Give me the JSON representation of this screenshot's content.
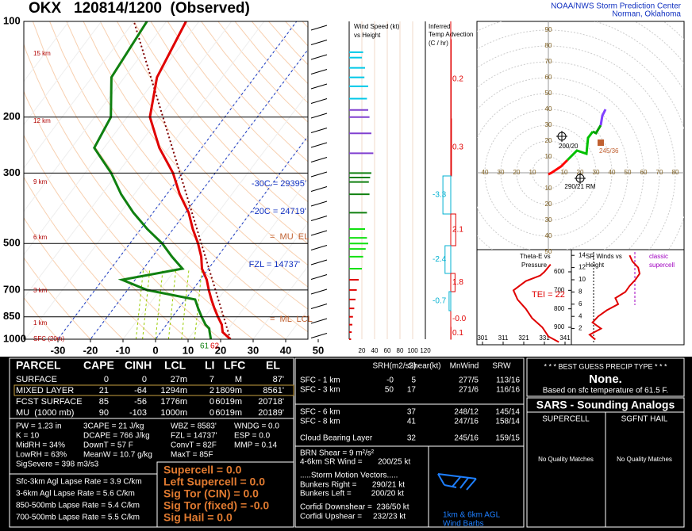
{
  "header": {
    "title": "OKX   120814/1200  (Observed)",
    "org": "NOAA/NWS Storm Prediction Center",
    "place": "Norman, Oklahoma"
  },
  "skewt": {
    "type": "line",
    "pressure_ticks": [
      100,
      200,
      300,
      500,
      700,
      850,
      1000
    ],
    "temp_ticks": [
      -30,
      -20,
      -10,
      0,
      10,
      20,
      30,
      40,
      50
    ],
    "height_labels": [
      "15 km",
      "12 km",
      "9 km",
      "6 km",
      "3 km",
      "1 km",
      "SFC (20m)"
    ],
    "annotations": [
      "-30C = 29395'",
      "-20C = 24719'",
      "FZL = 14737'",
      "=  MU  EL",
      "=  ML  LCL"
    ],
    "surface_labels": [
      "61",
      "62"
    ],
    "pressure": [
      1000,
      950,
      925,
      900,
      850,
      800,
      750,
      700,
      650,
      600,
      550,
      500,
      450,
      400,
      350,
      300,
      250,
      200,
      150,
      100
    ],
    "temperature": [
      23,
      19,
      18,
      17,
      14,
      11,
      8,
      5,
      2,
      -2,
      -5,
      -9,
      -14,
      -19,
      -26,
      -33,
      -43,
      -53,
      -60,
      -64
    ],
    "dewpoint": [
      17,
      15,
      14,
      12,
      9,
      6,
      3,
      -14,
      -24,
      -8,
      -14,
      -20,
      -28,
      -36,
      -44,
      -52,
      -63,
      -65,
      -74,
      -76
    ]
  },
  "wind_panel": {
    "title": "Wind Speed (kt)",
    "subtitle": "vs Height",
    "ticks": [
      20,
      40,
      60,
      80,
      100,
      120
    ],
    "pressure": [
      125,
      130,
      140,
      150,
      160,
      175,
      190,
      200,
      225,
      260,
      300,
      310,
      320,
      350,
      400,
      450,
      480,
      500,
      520,
      550,
      600,
      650,
      700,
      750,
      800,
      850,
      900,
      950,
      1000
    ],
    "speed": [
      22,
      20,
      25,
      24,
      30,
      28,
      30,
      32,
      35,
      38,
      35,
      33,
      31,
      32,
      28,
      25,
      28,
      30,
      26,
      22,
      20,
      15,
      12,
      10,
      8,
      6,
      5,
      4,
      3
    ]
  },
  "advection": {
    "title": "Inferred",
    "title2": "Temp Advection",
    "title3": "(C / hr)",
    "values": [
      0.2,
      0.3,
      -3.3,
      2.1,
      -2.4,
      1.8,
      -0.7,
      -0.0,
      0.1
    ],
    "value_labels": [
      "0.2",
      "0.3",
      "-3.3",
      "2.1",
      "-2.4",
      "1.8",
      "-0.7",
      "-0.0",
      "0.1"
    ]
  },
  "hodograph": {
    "x_ticks": [
      {
        "value": -40,
        "label": "40"
      },
      {
        "value": -30,
        "label": "30"
      },
      {
        "value": -20,
        "label": "20"
      },
      {
        "value": -10,
        "label": "10"
      },
      10,
      20,
      30,
      40,
      50,
      60,
      70,
      80
    ],
    "y_ticks": [
      90,
      80,
      70,
      60,
      50,
      40,
      30,
      20,
      10,
      {
        "value": -10,
        "label": "10"
      },
      {
        "value": -20,
        "label": "20"
      },
      {
        "value": -30,
        "label": "30"
      },
      {
        "value": -40,
        "label": "40"
      },
      {
        "value": -50,
        "label": "50"
      }
    ],
    "segments": [
      {
        "color": "#ff0000",
        "u": [
          0,
          2,
          5,
          8,
          12
        ],
        "v": [
          -1,
          0,
          2,
          4,
          8
        ]
      },
      {
        "color": "#00c000",
        "u": [
          12,
          18,
          24,
          25,
          28
        ],
        "v": [
          8,
          14,
          12,
          22,
          26
        ]
      },
      {
        "color": "#00a000",
        "u": [
          28,
          30,
          33
        ],
        "v": [
          26,
          25,
          30
        ]
      },
      {
        "color": "#8040ff",
        "u": [
          33,
          34,
          36
        ],
        "v": [
          30,
          36,
          40
        ]
      }
    ],
    "labels": [
      "200/20",
      "290/21 RM",
      "245/36"
    ]
  },
  "theta": {
    "title": "Theta-E vs",
    "title2": "Pressure",
    "y_ticks": [
      600,
      700,
      800,
      900
    ],
    "x_ticks": [
      301,
      311,
      321,
      331,
      341
    ],
    "tei": "TEI = 22",
    "pressure": [
      980,
      950,
      900,
      850,
      800,
      750,
      700,
      650,
      620,
      600,
      560
    ],
    "thetae": [
      338,
      333,
      330,
      325,
      322,
      318,
      316,
      322,
      329,
      331,
      334
    ]
  },
  "srwind": {
    "title": "SR Winds vs",
    "title2": "Height",
    "y_ticks": [
      2,
      4,
      6,
      8,
      10,
      12,
      14
    ],
    "note": "classic",
    "note2": "supercell",
    "height": [
      0.2,
      1,
      2,
      3,
      4,
      5,
      6,
      7,
      8,
      9,
      10,
      11,
      12,
      13,
      14
    ],
    "speed": [
      14,
      10,
      18,
      12,
      16,
      22,
      30,
      28,
      35,
      38,
      42,
      45,
      44,
      40,
      38
    ]
  },
  "parcel": {
    "header": [
      "PARCEL",
      "CAPE",
      "CINH",
      "LCL",
      "LI",
      "LFC",
      "EL"
    ],
    "rows": [
      [
        "SURFACE",
        "0",
        "0",
        "27m",
        "7",
        "M",
        "87'"
      ],
      [
        "MIXED LAYER",
        "21",
        "-64",
        "1294m",
        "2",
        "1809m",
        "8561'"
      ],
      [
        "FCST SURFACE",
        "85",
        "-56",
        "1776m",
        "0",
        "6019m",
        "20718'"
      ],
      [
        "MU  (1000 mb)",
        "90",
        "-103",
        "1000m",
        "0",
        "6019m",
        "20189'"
      ]
    ],
    "params": [
      [
        "PW = 1.23 in",
        "K = 10",
        "MidRH = 34%",
        "LowRH = 63%",
        "SigSevere = 398 m3/s3"
      ],
      [
        "3CAPE = 21 J/kg",
        "DCAPE = 766 J/kg",
        "DownT = 57 F",
        "MeanW = 10.7 g/kg"
      ],
      [
        "WBZ = 8583'",
        "FZL = 14737'",
        "ConvT = 82F",
        "MaxT = 85F"
      ],
      [
        "WNDG = 0.0",
        "ESP = 0.0",
        "MMP = 0.14"
      ]
    ],
    "lapse": [
      "Sfc-3km Agl Lapse Rate = 3.9 C/km",
      "3-6km Agl Lapse Rate = 5.6 C/km",
      "850-500mb Lapse Rate = 5.4 C/km",
      "700-500mb Lapse Rate = 5.5 C/km"
    ],
    "composite": [
      "Supercell = 0.0",
      "Left Supercell = 0.0",
      "Sig Tor (CIN) = 0.0",
      "Sig Tor (fixed) = -0.0",
      "Sig Hail = 0.0"
    ]
  },
  "kinematics": {
    "header": [
      "SRH(m2/s2)",
      "Shear(kt)",
      "MnWind",
      "SRW"
    ],
    "rows": [
      {
        "layer": "SFC - 1 km",
        "srh": "-0",
        "shear": "5",
        "mnwind": "277/5",
        "srw": "113/16"
      },
      {
        "layer": "SFC - 3 km",
        "srh": "50",
        "shear": "17",
        "mnwind": "271/6",
        "srw": "116/16"
      },
      {
        "layer": "SFC - 6 km",
        "shear": "37",
        "mnwind": "248/12",
        "srw": "145/14"
      },
      {
        "layer": "SFC - 8 km",
        "shear": "41",
        "mnwind": "247/16",
        "srw": "158/14"
      },
      {
        "layer": "Cloud Bearing Layer",
        "shear": "32",
        "mnwind": "245/16",
        "srw": "159/15"
      }
    ],
    "other": [
      "BRN Shear = 9 m²/s²",
      "4-6km SR Wind =       200/25 kt",
      ".....Storm Motion Vectors.....",
      "Bunkers Right =       290/21 kt",
      "Bunkers Left =         200/20 kt",
      "Corfidi Downshear =  236/50 kt",
      "Corfidi Upshear =     232/23 kt"
    ],
    "barb_note": [
      "1km & 6km AGL",
      "Wind Barbs"
    ]
  },
  "precip": {
    "title": "* * * BEST GUESS PRECIP TYPE * * *",
    "value": "None.",
    "note": "Based on sfc temperature of 61.5 F."
  },
  "sars": {
    "title": "SARS - Sounding Analogs",
    "columns": [
      "SUPERCELL",
      "SGFNT HAIL"
    ],
    "matches": [
      "No Quality Matches",
      "No Quality Matches"
    ]
  }
}
